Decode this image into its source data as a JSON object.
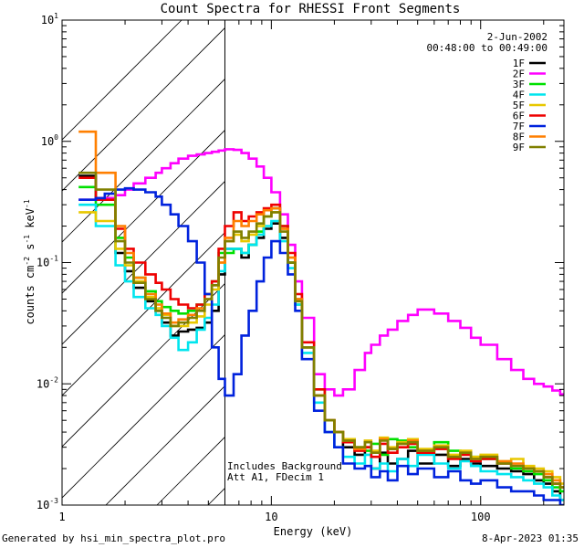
{
  "chart_data": {
    "type": "line",
    "title": "Count Spectra for RHESSI Front Segments",
    "xlabel": "Energy (keV)",
    "ylabel": {
      "base": "counts cm",
      "exp1": "-2",
      "mid": " s",
      "exp2": "-1",
      "mid2": " keV",
      "exp3": "-1"
    },
    "x_scale": "log",
    "y_scale": "log",
    "xlim": [
      1,
      250
    ],
    "ylim": [
      0.001,
      10
    ],
    "x_ticks": [
      {
        "value": 1,
        "label": "1"
      },
      {
        "value": 10,
        "label": "10"
      },
      {
        "value": 100,
        "label": "100"
      }
    ],
    "y_ticks": [
      {
        "value": 10,
        "base": "10",
        "exp": "1"
      },
      {
        "value": 1,
        "base": "10",
        "exp": "0"
      },
      {
        "value": 0.1,
        "base": "10",
        "exp": "-1"
      },
      {
        "value": 0.01,
        "base": "10",
        "exp": "-2"
      },
      {
        "value": 0.001,
        "base": "10",
        "exp": "-3"
      }
    ],
    "hatch_region_max_keV": 6,
    "date": "2-Jun-2002",
    "time_range": "00:48:00 to 00:49:00",
    "annotation_lines": [
      "Includes Background",
      "Att A1, FDecim  1"
    ],
    "legend_position": "top-right",
    "series": [
      {
        "name": "1F",
        "color": "#000000",
        "x": [
          1.2,
          1.3,
          1.45,
          1.6,
          1.8,
          2.0,
          2.2,
          2.5,
          2.8,
          3.0,
          3.3,
          3.6,
          4.0,
          4.4,
          4.8,
          5.2,
          5.6,
          6.0,
          6.6,
          7.2,
          7.8,
          8.5,
          9.2,
          10,
          11,
          12,
          13,
          14,
          16,
          18,
          20,
          22,
          25,
          28,
          30,
          33,
          36,
          40,
          45,
          50,
          60,
          70,
          80,
          90,
          100,
          120,
          140,
          160,
          180,
          200,
          220,
          240
        ],
        "y": [
          0.52,
          0.52,
          0.34,
          0.34,
          0.12,
          0.085,
          0.062,
          0.048,
          0.04,
          0.032,
          0.025,
          0.027,
          0.028,
          0.029,
          0.032,
          0.04,
          0.08,
          0.13,
          0.13,
          0.11,
          0.14,
          0.16,
          0.19,
          0.21,
          0.16,
          0.1,
          0.05,
          0.02,
          0.008,
          0.005,
          0.004,
          0.003,
          0.0026,
          0.003,
          0.002,
          0.0027,
          0.0022,
          0.0024,
          0.0028,
          0.0022,
          0.0026,
          0.0021,
          0.0024,
          0.0022,
          0.0021,
          0.002,
          0.0019,
          0.0018,
          0.0016,
          0.0015,
          0.0013,
          0.0011
        ]
      },
      {
        "name": "2F",
        "color": "#ff00ff",
        "x": [
          1.2,
          1.45,
          1.6,
          1.8,
          2.0,
          2.2,
          2.5,
          2.8,
          3.0,
          3.3,
          3.6,
          4.0,
          4.4,
          4.8,
          5.2,
          5.6,
          6.0,
          6.6,
          7.2,
          7.8,
          8.5,
          9.2,
          10,
          11,
          12,
          13,
          14,
          16,
          18,
          20,
          22,
          25,
          28,
          30,
          33,
          36,
          40,
          45,
          50,
          60,
          70,
          80,
          90,
          100,
          120,
          140,
          160,
          180,
          200,
          220,
          240
        ],
        "y": [
          0.33,
          0.34,
          0.34,
          0.36,
          0.4,
          0.45,
          0.5,
          0.55,
          0.6,
          0.66,
          0.72,
          0.76,
          0.78,
          0.8,
          0.82,
          0.84,
          0.86,
          0.85,
          0.8,
          0.72,
          0.62,
          0.5,
          0.38,
          0.25,
          0.14,
          0.07,
          0.035,
          0.012,
          0.009,
          0.008,
          0.009,
          0.013,
          0.018,
          0.021,
          0.025,
          0.028,
          0.033,
          0.037,
          0.041,
          0.038,
          0.033,
          0.029,
          0.024,
          0.021,
          0.016,
          0.013,
          0.011,
          0.01,
          0.0095,
          0.0088,
          0.0082
        ]
      },
      {
        "name": "3F",
        "color": "#00e000",
        "x": [
          1.2,
          1.3,
          1.45,
          1.6,
          1.8,
          2.0,
          2.2,
          2.5,
          2.8,
          3.0,
          3.3,
          3.6,
          4.0,
          4.4,
          4.8,
          5.2,
          5.6,
          6.0,
          6.6,
          7.2,
          7.8,
          8.5,
          9.2,
          10,
          11,
          12,
          13,
          14,
          16,
          18,
          20,
          22,
          25,
          28,
          30,
          33,
          36,
          40,
          45,
          50,
          60,
          70,
          80,
          90,
          100,
          120,
          140,
          160,
          180,
          200,
          220,
          240
        ],
        "y": [
          0.42,
          0.42,
          0.3,
          0.3,
          0.16,
          0.11,
          0.075,
          0.058,
          0.048,
          0.043,
          0.04,
          0.038,
          0.04,
          0.045,
          0.055,
          0.07,
          0.12,
          0.12,
          0.13,
          0.12,
          0.14,
          0.18,
          0.24,
          0.28,
          0.2,
          0.1,
          0.045,
          0.02,
          0.009,
          0.005,
          0.004,
          0.0035,
          0.003,
          0.0028,
          0.0032,
          0.0026,
          0.0035,
          0.0034,
          0.003,
          0.0027,
          0.0033,
          0.0028,
          0.0027,
          0.0025,
          0.0024,
          0.0022,
          0.002,
          0.0019,
          0.0018,
          0.0016,
          0.0014,
          0.0013
        ]
      },
      {
        "name": "4F",
        "color": "#00e5ee",
        "x": [
          1.2,
          1.3,
          1.45,
          1.6,
          1.8,
          2.0,
          2.2,
          2.5,
          2.8,
          3.0,
          3.3,
          3.6,
          4.0,
          4.4,
          4.8,
          5.2,
          5.6,
          6.0,
          6.6,
          7.2,
          7.8,
          8.5,
          9.2,
          10,
          11,
          12,
          13,
          14,
          16,
          18,
          20,
          22,
          25,
          28,
          30,
          33,
          36,
          40,
          45,
          50,
          60,
          70,
          80,
          90,
          100,
          120,
          140,
          160,
          180,
          200,
          220,
          240
        ],
        "y": [
          0.3,
          0.3,
          0.2,
          0.2,
          0.095,
          0.07,
          0.052,
          0.042,
          0.037,
          0.03,
          0.024,
          0.019,
          0.022,
          0.028,
          0.035,
          0.045,
          0.085,
          0.13,
          0.13,
          0.12,
          0.14,
          0.17,
          0.2,
          0.22,
          0.15,
          0.09,
          0.045,
          0.018,
          0.007,
          0.004,
          0.003,
          0.0025,
          0.0022,
          0.0026,
          0.002,
          0.0022,
          0.0019,
          0.0024,
          0.0021,
          0.0026,
          0.0022,
          0.002,
          0.0023,
          0.0021,
          0.0019,
          0.0018,
          0.0017,
          0.0016,
          0.0015,
          0.0014,
          0.0012,
          0.0011
        ]
      },
      {
        "name": "5F",
        "color": "#e8c800",
        "x": [
          1.2,
          1.3,
          1.45,
          1.6,
          1.8,
          2.0,
          2.2,
          2.5,
          2.8,
          3.0,
          3.3,
          3.6,
          4.0,
          4.4,
          4.8,
          5.2,
          5.6,
          6.0,
          6.6,
          7.2,
          7.8,
          8.5,
          9.2,
          10,
          11,
          12,
          13,
          14,
          16,
          18,
          20,
          22,
          25,
          28,
          30,
          33,
          36,
          40,
          45,
          50,
          60,
          70,
          80,
          90,
          100,
          120,
          140,
          160,
          180,
          200,
          220,
          240
        ],
        "y": [
          0.26,
          0.26,
          0.22,
          0.22,
          0.13,
          0.095,
          0.07,
          0.052,
          0.042,
          0.037,
          0.03,
          0.03,
          0.032,
          0.036,
          0.045,
          0.06,
          0.1,
          0.15,
          0.17,
          0.15,
          0.17,
          0.2,
          0.24,
          0.26,
          0.19,
          0.11,
          0.05,
          0.02,
          0.008,
          0.005,
          0.004,
          0.0035,
          0.003,
          0.0034,
          0.0028,
          0.0036,
          0.003,
          0.0033,
          0.0035,
          0.0029,
          0.0031,
          0.0026,
          0.0028,
          0.0025,
          0.0026,
          0.0023,
          0.0024,
          0.0021,
          0.002,
          0.0019,
          0.0017,
          0.0015
        ]
      },
      {
        "name": "6F",
        "color": "#ee0000",
        "x": [
          1.2,
          1.3,
          1.45,
          1.6,
          1.8,
          2.0,
          2.2,
          2.5,
          2.8,
          3.0,
          3.3,
          3.6,
          4.0,
          4.4,
          4.8,
          5.2,
          5.6,
          6.0,
          6.6,
          7.2,
          7.8,
          8.5,
          9.2,
          10,
          11,
          12,
          13,
          14,
          16,
          18,
          20,
          22,
          25,
          28,
          30,
          33,
          36,
          40,
          45,
          50,
          60,
          70,
          80,
          90,
          100,
          120,
          140,
          160,
          180,
          200,
          220,
          240
        ],
        "y": [
          0.5,
          0.5,
          0.33,
          0.33,
          0.19,
          0.13,
          0.1,
          0.08,
          0.068,
          0.06,
          0.05,
          0.045,
          0.042,
          0.045,
          0.055,
          0.07,
          0.13,
          0.2,
          0.26,
          0.22,
          0.24,
          0.26,
          0.28,
          0.3,
          0.2,
          0.12,
          0.055,
          0.022,
          0.009,
          0.005,
          0.004,
          0.0033,
          0.0028,
          0.003,
          0.0025,
          0.0032,
          0.0027,
          0.003,
          0.0032,
          0.0027,
          0.0029,
          0.0024,
          0.0026,
          0.0023,
          0.0024,
          0.0022,
          0.0021,
          0.002,
          0.0019,
          0.0017,
          0.0015,
          0.0014
        ]
      },
      {
        "name": "7F",
        "color": "#0022dd",
        "x": [
          1.2,
          1.45,
          1.6,
          1.8,
          2.0,
          2.2,
          2.5,
          2.8,
          3.0,
          3.3,
          3.6,
          4.0,
          4.4,
          4.8,
          5.2,
          5.6,
          6.0,
          6.6,
          7.2,
          7.8,
          8.5,
          9.2,
          10,
          11,
          12,
          13,
          14,
          16,
          18,
          20,
          22,
          25,
          28,
          30,
          33,
          36,
          40,
          45,
          50,
          60,
          70,
          80,
          90,
          100,
          120,
          140,
          160,
          180,
          200,
          220,
          240
        ],
        "y": [
          0.33,
          0.34,
          0.37,
          0.4,
          0.41,
          0.4,
          0.38,
          0.35,
          0.3,
          0.25,
          0.2,
          0.15,
          0.1,
          0.055,
          0.02,
          0.011,
          0.008,
          0.012,
          0.025,
          0.04,
          0.07,
          0.11,
          0.15,
          0.12,
          0.08,
          0.04,
          0.016,
          0.006,
          0.004,
          0.003,
          0.0022,
          0.002,
          0.0021,
          0.0017,
          0.0019,
          0.0016,
          0.0021,
          0.0018,
          0.002,
          0.0017,
          0.0019,
          0.0016,
          0.0015,
          0.0016,
          0.0014,
          0.0013,
          0.0013,
          0.0012,
          0.0011,
          0.0011,
          0.001
        ]
      },
      {
        "name": "8F",
        "color": "#ff7f00",
        "x": [
          1.2,
          1.3,
          1.45,
          1.6,
          1.8,
          2.0,
          2.2,
          2.5,
          2.8,
          3.0,
          3.3,
          3.6,
          4.0,
          4.4,
          4.8,
          5.2,
          5.6,
          6.0,
          6.6,
          7.2,
          7.8,
          8.5,
          9.2,
          10,
          11,
          12,
          13,
          14,
          16,
          18,
          20,
          22,
          25,
          28,
          30,
          33,
          36,
          40,
          45,
          50,
          60,
          70,
          80,
          90,
          100,
          120,
          140,
          160,
          180,
          200,
          220,
          240
        ],
        "y": [
          1.2,
          1.2,
          0.55,
          0.55,
          0.2,
          0.12,
          0.075,
          0.055,
          0.045,
          0.038,
          0.032,
          0.034,
          0.037,
          0.042,
          0.05,
          0.065,
          0.1,
          0.16,
          0.22,
          0.2,
          0.22,
          0.25,
          0.27,
          0.28,
          0.19,
          0.11,
          0.05,
          0.02,
          0.008,
          0.005,
          0.004,
          0.0034,
          0.0029,
          0.0033,
          0.0027,
          0.0035,
          0.0029,
          0.0032,
          0.0034,
          0.0028,
          0.003,
          0.0025,
          0.0027,
          0.0024,
          0.0025,
          0.0023,
          0.0022,
          0.002,
          0.0019,
          0.0018,
          0.0016,
          0.0014
        ]
      },
      {
        "name": "9F",
        "color": "#808000",
        "x": [
          1.2,
          1.3,
          1.45,
          1.6,
          1.8,
          2.0,
          2.2,
          2.5,
          2.8,
          3.0,
          3.3,
          3.6,
          4.0,
          4.4,
          4.8,
          5.2,
          5.6,
          6.0,
          6.6,
          7.2,
          7.8,
          8.5,
          9.2,
          10,
          11,
          12,
          13,
          14,
          16,
          18,
          20,
          22,
          25,
          28,
          30,
          33,
          36,
          40,
          45,
          50,
          60,
          70,
          80,
          90,
          100,
          120,
          140,
          160,
          180,
          200,
          220,
          240
        ],
        "y": [
          0.55,
          0.55,
          0.4,
          0.4,
          0.15,
          0.1,
          0.068,
          0.05,
          0.04,
          0.035,
          0.03,
          0.032,
          0.035,
          0.04,
          0.05,
          0.065,
          0.11,
          0.15,
          0.18,
          0.16,
          0.18,
          0.21,
          0.24,
          0.26,
          0.18,
          0.1,
          0.048,
          0.02,
          0.008,
          0.005,
          0.004,
          0.0034,
          0.003,
          0.0033,
          0.0027,
          0.0034,
          0.0029,
          0.0032,
          0.0033,
          0.0028,
          0.003,
          0.0025,
          0.0027,
          0.0024,
          0.0025,
          0.0022,
          0.0021,
          0.002,
          0.0019,
          0.0017,
          0.0015,
          0.0014
        ]
      }
    ]
  },
  "footer": {
    "left": "Generated by hsi_min_spectra_plot.pro",
    "right": "8-Apr-2023 01:35"
  }
}
